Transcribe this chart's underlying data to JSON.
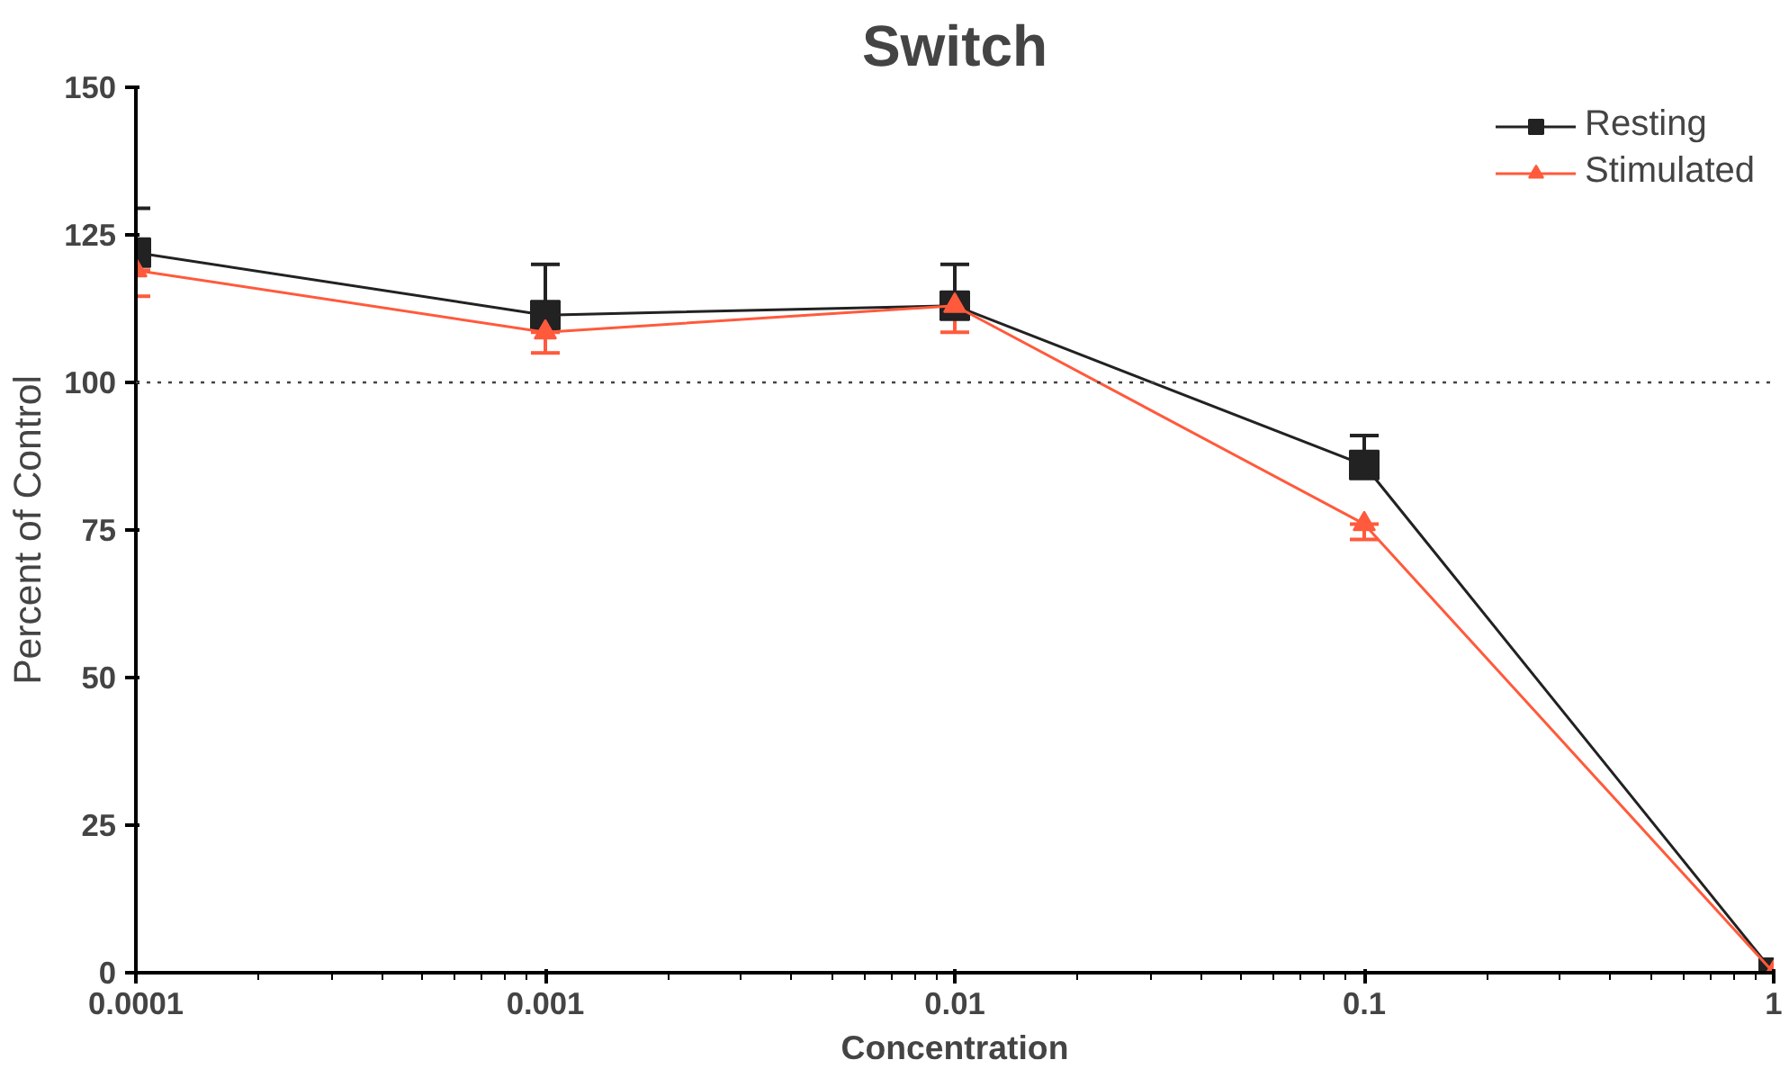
{
  "chart_data": {
    "type": "line",
    "title": "Switch",
    "xlabel": "Concentration",
    "ylabel": "Percent of Control",
    "x": [
      0.0001,
      0.001,
      0.01,
      0.1,
      1
    ],
    "log": "x",
    "xlim": [
      0.0001,
      1
    ],
    "xticks": [
      {
        "value": 0.0001,
        "label": "0.0001"
      },
      {
        "value": 0.001,
        "label": "0.001"
      },
      {
        "value": 0.01,
        "label": "0.01"
      },
      {
        "value": 0.1,
        "label": "0.1"
      },
      {
        "value": 1,
        "label": "1"
      }
    ],
    "ylim": [
      0,
      150
    ],
    "yticks": [
      0,
      25,
      50,
      75,
      100,
      125,
      150
    ],
    "grid": false,
    "legend": "top right",
    "line_style": "solid",
    "series": [
      {
        "name": "Resting",
        "color": "#222222",
        "marker": "square",
        "values": [
          122,
          111.4,
          113,
          86,
          0
        ],
        "errors": [
          [
            122,
            129.5
          ],
          [
            111.4,
            120
          ],
          [
            113,
            120
          ],
          [
            86,
            91
          ],
          null
        ]
      },
      {
        "name": "Stimulated",
        "color": "#ff5a3c",
        "marker": "triangle",
        "values": [
          119,
          108.5,
          113,
          76,
          0
        ],
        "errors": [
          [
            114.6,
            119
          ],
          [
            105,
            108.5
          ],
          [
            108.5,
            113
          ],
          [
            73.4,
            76
          ],
          null
        ]
      }
    ],
    "ref_lines": [
      {
        "axis": "y",
        "value": 100,
        "line_style": "dotted",
        "color": "#444444"
      }
    ]
  }
}
